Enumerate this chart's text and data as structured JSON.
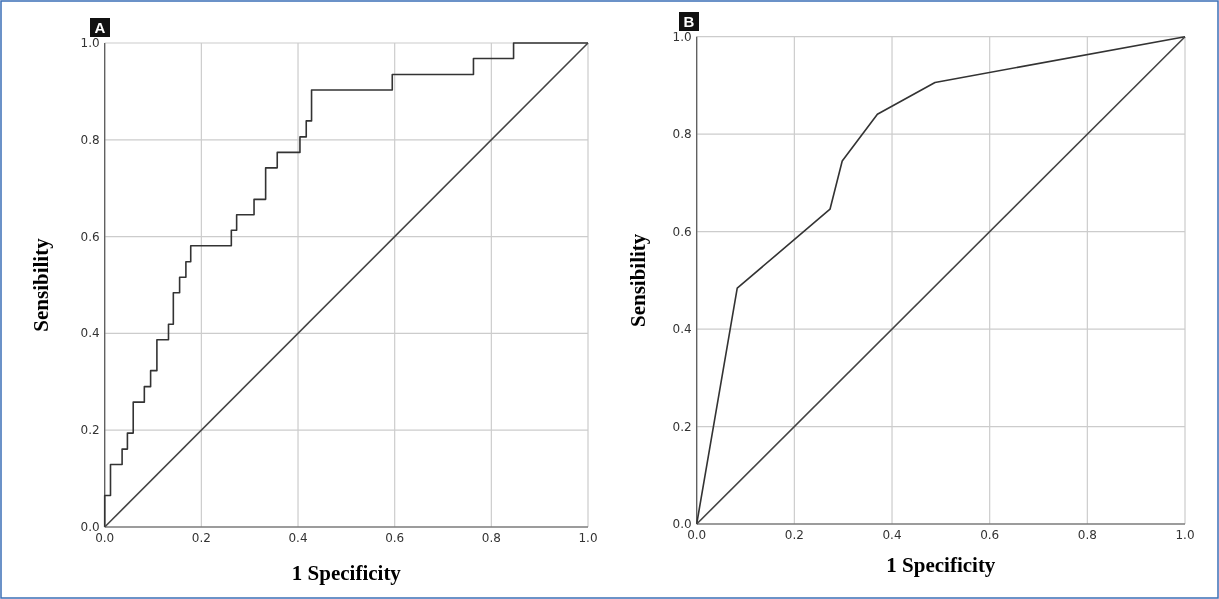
{
  "chart_data": [
    {
      "type": "line",
      "title": "A",
      "xlabel": "1 Specificity",
      "ylabel": "Sensibility",
      "xlim": [
        0,
        1
      ],
      "ylim": [
        0,
        1
      ],
      "xticks": [
        {
          "value": 0,
          "label": "0.0"
        },
        {
          "value": 0.2,
          "label": "0.2"
        },
        {
          "value": 0.4,
          "label": "0.4"
        },
        {
          "value": 0.6,
          "label": "0.6"
        },
        {
          "value": 0.8,
          "label": "0.8"
        },
        {
          "value": 1,
          "label": "1.0"
        }
      ],
      "yticks": [
        {
          "value": 0,
          "label": "0.0"
        },
        {
          "value": 0.2,
          "label": "0.2"
        },
        {
          "value": 0.4,
          "label": "0.4"
        },
        {
          "value": 0.6,
          "label": "0.6"
        },
        {
          "value": 0.8,
          "label": "0.8"
        },
        {
          "value": 1,
          "label": "1.0"
        }
      ],
      "grid": true,
      "series": [
        {
          "type": "step",
          "color": "#333333",
          "x": [
            0,
            0,
            0.012,
            0.036,
            0.047,
            0.059,
            0.082,
            0.095,
            0.108,
            0.132,
            0.142,
            0.155,
            0.168,
            0.178,
            0.262,
            0.273,
            0.309,
            0.333,
            0.357,
            0.404,
            0.417,
            0.428,
            0.595,
            0.763,
            0.846,
            1
          ],
          "values": [
            0,
            0.065,
            0.129,
            0.161,
            0.194,
            0.258,
            0.29,
            0.323,
            0.387,
            0.419,
            0.484,
            0.516,
            0.548,
            0.581,
            0.613,
            0.645,
            0.677,
            0.742,
            0.774,
            0.806,
            0.839,
            0.903,
            0.935,
            0.968,
            1,
            1
          ]
        },
        {
          "type": "line",
          "color": "#444444",
          "x": [
            0,
            1
          ],
          "values": [
            0,
            1
          ]
        }
      ]
    },
    {
      "type": "line",
      "title": "B",
      "xlabel": "1 Specificity",
      "ylabel": "Sensibility",
      "xlim": [
        0,
        1
      ],
      "ylim": [
        0,
        1
      ],
      "xticks": [
        {
          "value": 0,
          "label": "0.0"
        },
        {
          "value": 0.2,
          "label": "0.2"
        },
        {
          "value": 0.4,
          "label": "0.4"
        },
        {
          "value": 0.6,
          "label": "0.6"
        },
        {
          "value": 0.8,
          "label": "0.8"
        },
        {
          "value": 1,
          "label": "1.0"
        }
      ],
      "yticks": [
        {
          "value": 0,
          "label": "0.0"
        },
        {
          "value": 0.2,
          "label": "0.2"
        },
        {
          "value": 0.4,
          "label": "0.4"
        },
        {
          "value": 0.6,
          "label": "0.6"
        },
        {
          "value": 0.8,
          "label": "0.8"
        },
        {
          "value": 1,
          "label": "1.0"
        }
      ],
      "grid": true,
      "series": [
        {
          "type": "line",
          "color": "#333333",
          "x": [
            0,
            0.083,
            0.273,
            0.298,
            0.37,
            0.488,
            1
          ],
          "values": [
            0,
            0.484,
            0.646,
            0.745,
            0.841,
            0.906,
            1
          ]
        },
        {
          "type": "line",
          "color": "#444444",
          "x": [
            0,
            1
          ],
          "values": [
            0,
            1
          ]
        }
      ]
    }
  ]
}
